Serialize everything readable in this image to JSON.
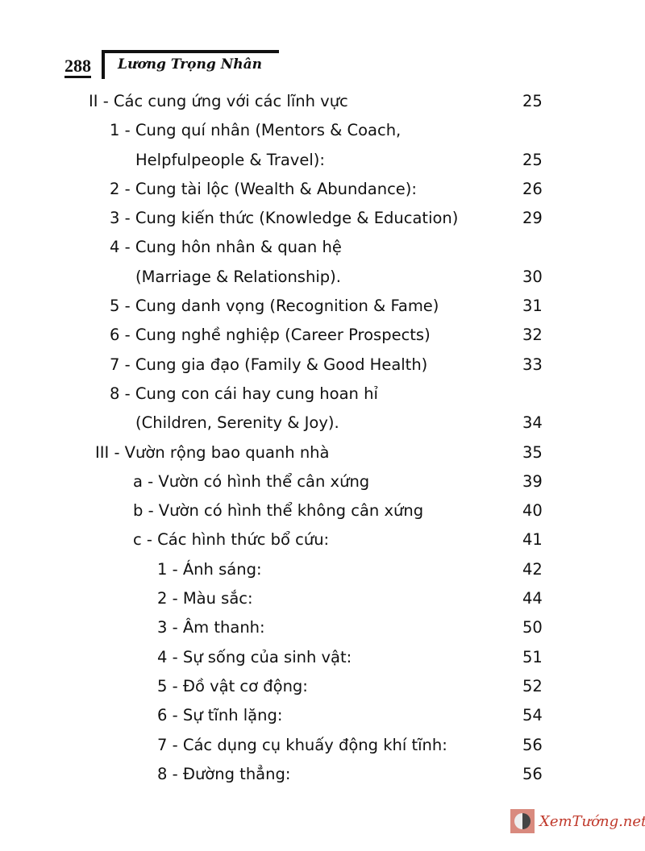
{
  "header": {
    "page_number": "288",
    "author": "Lương Trọng Nhân"
  },
  "toc": [
    {
      "level": "l0",
      "text": "II - Các cung ứng với các lĩnh vực",
      "page": "25"
    },
    {
      "level": "l1",
      "text": "1 - Cung quí  nhân (Mentors & Coach,",
      "page": ""
    },
    {
      "level": "l1c",
      "text": "Helpfulpeople & Travel):",
      "page": "25"
    },
    {
      "level": "l1",
      "text": "2 - Cung tài lộc (Wealth & Abundance):",
      "page": "26"
    },
    {
      "level": "l1",
      "text": "3 - Cung kiến thức (Knowledge & Education)",
      "page": "29"
    },
    {
      "level": "l1",
      "text": "4 - Cung hôn nhân & quan hệ",
      "page": ""
    },
    {
      "level": "l1c",
      "text": "(Marriage & Relationship).",
      "page": "30"
    },
    {
      "level": "l1",
      "text": "5 - Cung danh vọng (Recognition & Fame)",
      "page": "31"
    },
    {
      "level": "l1",
      "text": "6 - Cung nghề nghiệp (Career Prospects)",
      "page": "32"
    },
    {
      "level": "l1",
      "text": "7 - Cung gia đạo (Family & Good Health)",
      "page": "33"
    },
    {
      "level": "l1",
      "text": "8 - Cung con cái hay cung hoan hỉ",
      "page": ""
    },
    {
      "level": "l1c",
      "text": "(Children, Serenity & Joy).",
      "page": "34"
    },
    {
      "level": "l0b",
      "text": "III - Vườn rộng bao quanh nhà",
      "page": "35"
    },
    {
      "level": "l2",
      "text": "a - Vườn có hình thể cân xứng",
      "page": "39"
    },
    {
      "level": "l2",
      "text": "b - Vườn có hình thể không cân xứng",
      "page": "40"
    },
    {
      "level": "l2",
      "text": "c - Các hình thức bổ cứu:",
      "page": "41"
    },
    {
      "level": "l3",
      "text": "1 - Ánh sáng:",
      "page": "42"
    },
    {
      "level": "l3",
      "text": "2 - Màu sắc:",
      "page": "44"
    },
    {
      "level": "l3",
      "text": "3 - Âm thanh:",
      "page": "50"
    },
    {
      "level": "l3",
      "text": "4 - Sự sống của sinh vật:",
      "page": "51"
    },
    {
      "level": "l3",
      "text": "5 - Đồ vật cơ động:",
      "page": "52"
    },
    {
      "level": "l3",
      "text": "6 - Sự tĩnh lặng:",
      "page": "54"
    },
    {
      "level": "l3",
      "text": "7 - Các dụng cụ khuấy động khí tĩnh:",
      "page": "56"
    },
    {
      "level": "l3",
      "text": "8 - Đường thẳng:",
      "page": "56"
    }
  ],
  "watermark": {
    "text": "XemTướng.net",
    "icon": "yin-yang-icon",
    "color": "#c0392b"
  }
}
